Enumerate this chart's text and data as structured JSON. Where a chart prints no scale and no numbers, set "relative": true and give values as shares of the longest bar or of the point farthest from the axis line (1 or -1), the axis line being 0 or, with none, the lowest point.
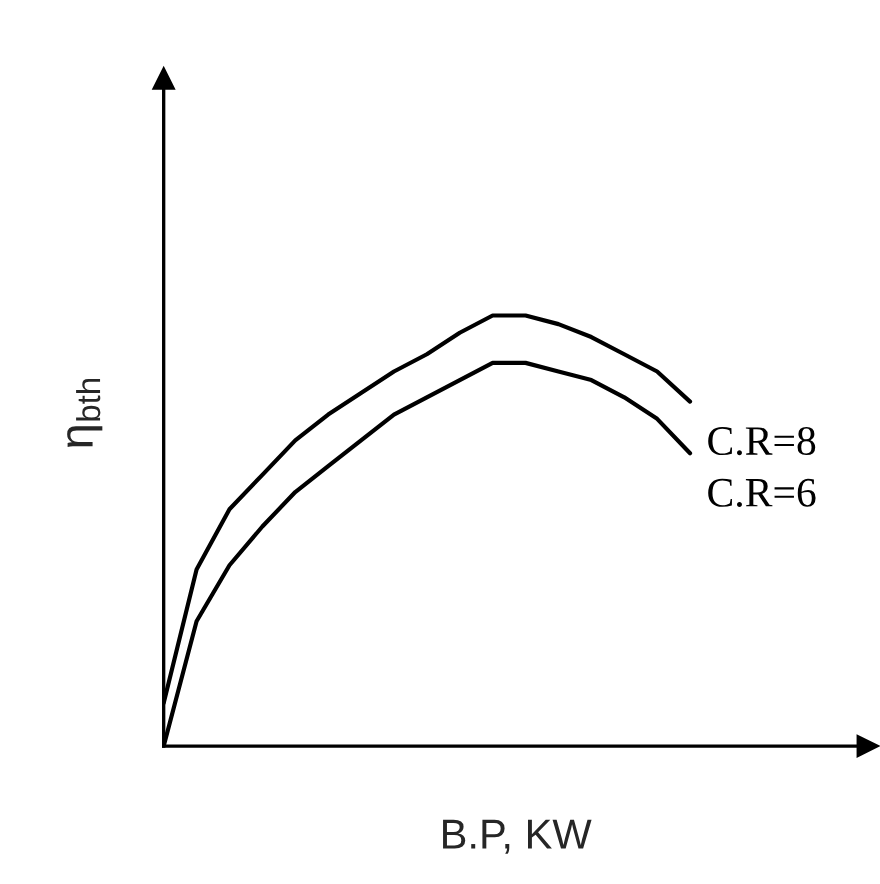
{
  "chart_data": {
    "type": "line",
    "relative": true,
    "xlabel": "B.P, KW",
    "ylabel": "η$_{bth}$",
    "categories": [
      null,
      null,
      null,
      null,
      null,
      null,
      null,
      null,
      null,
      null,
      null,
      null,
      null,
      null,
      null,
      null,
      null,
      null,
      null,
      null,
      null,
      null
    ],
    "series": [
      {
        "name": "C.R=8",
        "color": "#000000",
        "values": [
          0.1,
          0.41,
          0.55,
          0.63,
          0.71,
          0.77,
          0.82,
          0.87,
          0.91,
          0.96,
          1.0,
          1.0,
          0.98,
          0.95,
          0.91,
          0.87,
          0.8,
          null,
          null,
          null,
          null,
          null
        ]
      },
      {
        "name": "C.R=6",
        "color": "#000000",
        "values": [
          0,
          0.29,
          0.42,
          0.51,
          0.59,
          0.65,
          0.71,
          0.77,
          0.81,
          0.85,
          0.89,
          0.89,
          0.87,
          0.85,
          0.81,
          0.76,
          0.68,
          null,
          null,
          null,
          null,
          null
        ]
      }
    ],
    "marker": "none",
    "line_style": "solid",
    "legend": false
  }
}
